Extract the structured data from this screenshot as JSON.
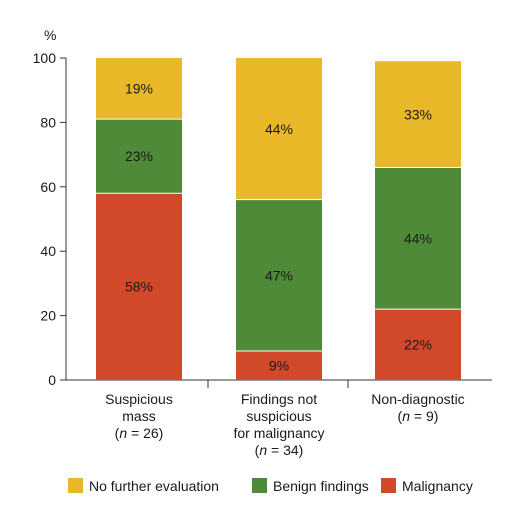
{
  "chart_data": {
    "type": "bar",
    "stacked": true,
    "unit_label": "%",
    "ylim": [
      0,
      100
    ],
    "yticks": [
      0,
      20,
      40,
      60,
      80,
      100
    ],
    "categories": [
      {
        "lines": [
          "Suspicious",
          "mass"
        ],
        "n": "26"
      },
      {
        "lines": [
          "Findings not",
          "suspicious",
          "for malignancy"
        ],
        "n": "34"
      },
      {
        "lines": [
          "Non-diagnostic"
        ],
        "n": "9"
      }
    ],
    "series": [
      {
        "name": "Malignancy",
        "color": "#d2482a",
        "values": [
          58,
          9,
          22
        ],
        "labels": [
          "58%",
          "9%",
          "22%"
        ]
      },
      {
        "name": "Benign findings",
        "color": "#4e8a37",
        "values": [
          23,
          47,
          44
        ],
        "labels": [
          "23%",
          "47%",
          "44%"
        ]
      },
      {
        "name": "No further evaluation",
        "color": "#e8b829",
        "values": [
          19,
          44,
          33
        ],
        "labels": [
          "19%",
          "44%",
          "33%"
        ]
      }
    ],
    "legend": {
      "position": "bottom",
      "order": [
        "No further evaluation",
        "Benign findings",
        "Malignancy"
      ]
    },
    "grid": false
  }
}
